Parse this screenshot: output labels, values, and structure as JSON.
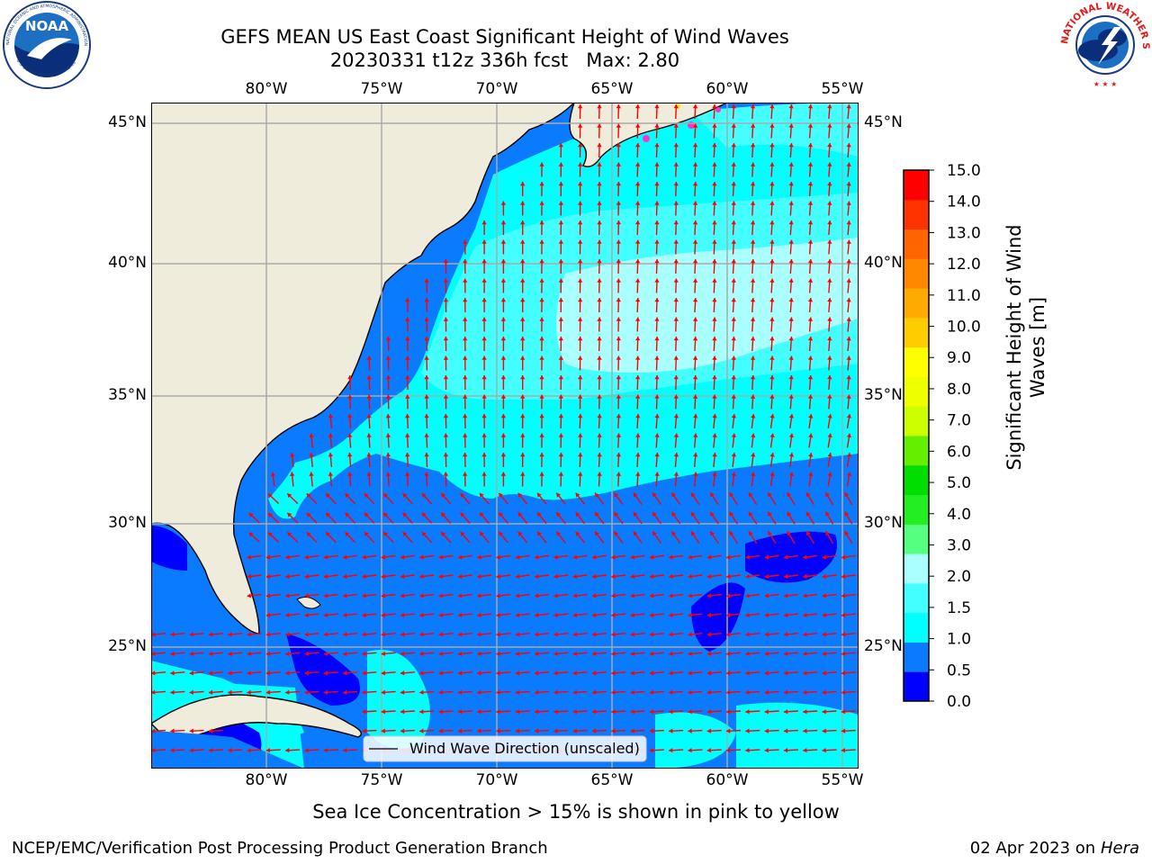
{
  "title": {
    "line1": "GEFS MEAN US East Coast Significant Height of Wind Waves",
    "line2": "20230331 t12z 336h fcst   Max: 2.80"
  },
  "map": {
    "lon_labels": [
      "80°W",
      "75°W",
      "70°W",
      "65°W",
      "60°W",
      "55°W"
    ],
    "lat_labels": [
      "45°N",
      "40°N",
      "35°N",
      "30°N",
      "25°N"
    ],
    "legend_label": "Wind Wave Direction (unscaled)",
    "colors": {
      "land": "#efecdc",
      "arrow": "#ff0000",
      "gridline": "#aaaaaa",
      "ice": "#ff33cc"
    }
  },
  "colorbar": {
    "label": "Significant Height of Wind Waves [m]",
    "tick_labels": [
      "0.0",
      "0.5",
      "1.0",
      "1.5",
      "2.0",
      "3.0",
      "4.0",
      "5.0",
      "6.0",
      "7.0",
      "8.0",
      "9.0",
      "10.0",
      "11.0",
      "12.0",
      "13.0",
      "14.0",
      "15.0"
    ],
    "colors": [
      "#0000ff",
      "#0a7bff",
      "#00ffff",
      "#44ffff",
      "#aaffff",
      "#55ff80",
      "#22ee22",
      "#00dd00",
      "#66ee00",
      "#ccff00",
      "#eeff00",
      "#ffff00",
      "#ffcc00",
      "#ffaa00",
      "#ff8800",
      "#ff6600",
      "#ff3300",
      "#ff0000"
    ]
  },
  "footer": {
    "sea_ice_note": "Sea Ice Concentration > 15% is shown in pink to yellow",
    "left": "NCEP/EMC/Verification Post Processing Product Generation Branch",
    "right_date": "02 Apr 2023 on ",
    "right_host": "Hera"
  },
  "logos": {
    "noaa_text": "NOAA",
    "noaa_ring": "NATIONAL OCEANIC AND ATMOSPHERIC ADMINISTRATION",
    "noaa_dept": "U.S. DEPARTMENT OF COMMERCE",
    "nws_ring": "NATIONAL WEATHER SERVICE"
  }
}
